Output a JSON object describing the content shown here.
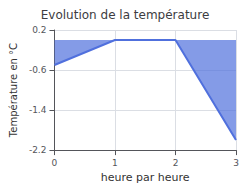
{
  "chart_data": {
    "type": "area",
    "title": "Evolution de la température",
    "xlabel": "heure par heure",
    "ylabel": "Température en °C",
    "x": [
      0,
      1,
      2,
      3
    ],
    "values": [
      -0.5,
      0.0,
      0.0,
      -2.0
    ],
    "xlim": [
      0,
      3
    ],
    "xticks": [
      0,
      1,
      2,
      3
    ],
    "ylim": [
      -2.2,
      0.2
    ],
    "yticks": [
      0.2,
      -0.6,
      -1.4,
      -2.2
    ],
    "grid": true
  }
}
